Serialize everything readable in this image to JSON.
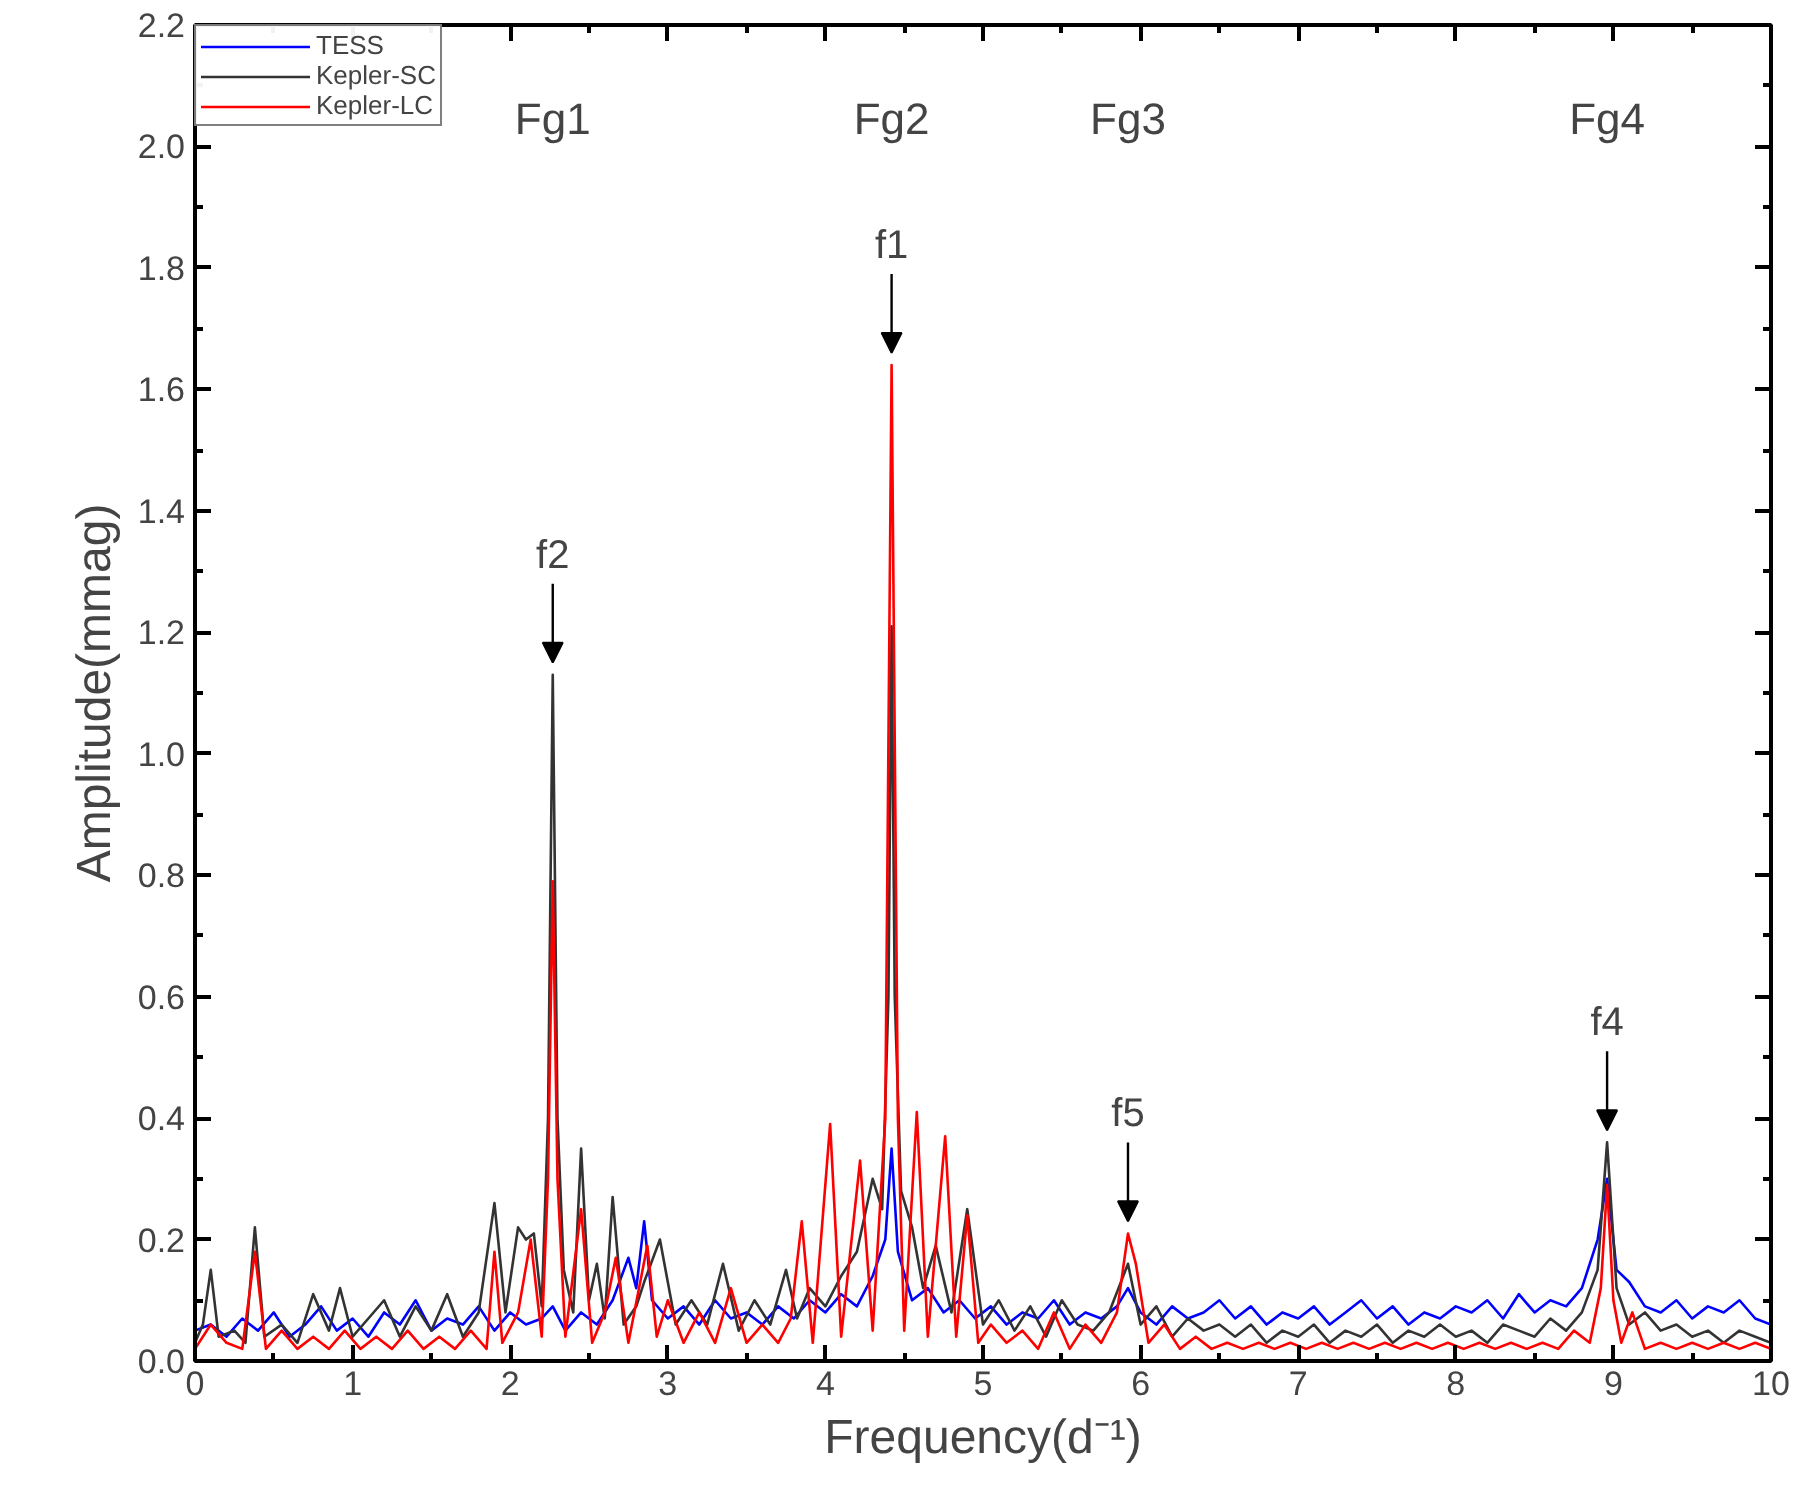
{
  "chart_data": {
    "type": "line",
    "xlabel": "Frequency(d⁻¹)",
    "ylabel": "Amplitude(mmag)",
    "xlim": [
      0,
      10
    ],
    "xticks": [
      0,
      1,
      2,
      3,
      4,
      5,
      6,
      7,
      8,
      9,
      10
    ],
    "ylim": [
      0,
      2.2
    ],
    "yticks": [
      {
        "value": 0,
        "label": "0.0"
      },
      {
        "value": 0.2,
        "label": "0.2"
      },
      {
        "value": 0.4,
        "label": "0.4"
      },
      {
        "value": 0.6,
        "label": "0.6"
      },
      {
        "value": 0.8,
        "label": "0.8"
      },
      {
        "value": 1.0,
        "label": "1.0"
      },
      {
        "value": 1.2,
        "label": "1.2"
      },
      {
        "value": 1.4,
        "label": "1.4"
      },
      {
        "value": 1.6,
        "label": "1.6"
      },
      {
        "value": 1.8,
        "label": "1.8"
      },
      {
        "value": 2.0,
        "label": "2.0"
      },
      {
        "value": 2.2,
        "label": "2.2"
      }
    ],
    "grid": false,
    "legend": "top left",
    "marker": "none",
    "line_style": "solid",
    "annotations": [
      "Fg1",
      "Fg2",
      "Fg3",
      "Fg4",
      {
        "text": "f1",
        "x": 4.42,
        "y": 1.64
      },
      {
        "text": "f2",
        "x": 2.27,
        "y": 1.13
      },
      {
        "text": "f5",
        "x": 5.92,
        "y": 0.21
      },
      {
        "text": "f4",
        "x": 8.96,
        "y": 0.36
      }
    ],
    "series": [
      {
        "name": "TESS",
        "color": "#0000ff",
        "x": [
          0,
          0.1,
          0.2,
          0.3,
          0.4,
          0.5,
          0.6,
          0.7,
          0.8,
          0.9,
          1.0,
          1.1,
          1.2,
          1.3,
          1.4,
          1.5,
          1.6,
          1.7,
          1.8,
          1.9,
          2.0,
          2.1,
          2.2,
          2.27,
          2.35,
          2.45,
          2.55,
          2.65,
          2.75,
          2.8,
          2.85,
          2.9,
          3.0,
          3.1,
          3.2,
          3.3,
          3.4,
          3.5,
          3.6,
          3.7,
          3.8,
          3.9,
          4.0,
          4.1,
          4.2,
          4.3,
          4.38,
          4.42,
          4.46,
          4.55,
          4.65,
          4.75,
          4.85,
          4.95,
          5.05,
          5.15,
          5.25,
          5.35,
          5.45,
          5.55,
          5.65,
          5.75,
          5.85,
          5.92,
          6.0,
          6.1,
          6.2,
          6.3,
          6.4,
          6.5,
          6.6,
          6.7,
          6.8,
          6.9,
          7.0,
          7.1,
          7.2,
          7.3,
          7.4,
          7.5,
          7.6,
          7.7,
          7.8,
          7.9,
          8.0,
          8.1,
          8.2,
          8.3,
          8.4,
          8.5,
          8.6,
          8.7,
          8.8,
          8.9,
          8.96,
          9.02,
          9.1,
          9.2,
          9.3,
          9.4,
          9.5,
          9.6,
          9.7,
          9.8,
          9.9,
          10.0
        ],
        "values": [
          0.05,
          0.06,
          0.04,
          0.07,
          0.05,
          0.08,
          0.04,
          0.06,
          0.09,
          0.05,
          0.07,
          0.04,
          0.08,
          0.06,
          0.1,
          0.05,
          0.07,
          0.06,
          0.09,
          0.05,
          0.08,
          0.06,
          0.07,
          0.09,
          0.05,
          0.08,
          0.06,
          0.1,
          0.17,
          0.12,
          0.23,
          0.1,
          0.07,
          0.09,
          0.06,
          0.1,
          0.07,
          0.08,
          0.06,
          0.09,
          0.07,
          0.1,
          0.08,
          0.11,
          0.09,
          0.14,
          0.2,
          0.35,
          0.18,
          0.1,
          0.12,
          0.08,
          0.1,
          0.07,
          0.09,
          0.06,
          0.08,
          0.07,
          0.1,
          0.06,
          0.08,
          0.07,
          0.09,
          0.12,
          0.08,
          0.06,
          0.09,
          0.07,
          0.08,
          0.1,
          0.07,
          0.09,
          0.06,
          0.08,
          0.07,
          0.09,
          0.06,
          0.08,
          0.1,
          0.07,
          0.09,
          0.06,
          0.08,
          0.07,
          0.09,
          0.08,
          0.1,
          0.07,
          0.11,
          0.08,
          0.1,
          0.09,
          0.12,
          0.2,
          0.3,
          0.15,
          0.13,
          0.09,
          0.08,
          0.1,
          0.07,
          0.09,
          0.08,
          0.1,
          0.07,
          0.06
        ]
      },
      {
        "name": "Kepler-SC",
        "color": "#333333",
        "x": [
          0,
          0.05,
          0.1,
          0.15,
          0.25,
          0.32,
          0.38,
          0.44,
          0.55,
          0.65,
          0.75,
          0.85,
          0.92,
          1.0,
          1.1,
          1.2,
          1.3,
          1.4,
          1.5,
          1.6,
          1.7,
          1.8,
          1.9,
          1.97,
          2.05,
          2.1,
          2.15,
          2.2,
          2.24,
          2.27,
          2.3,
          2.34,
          2.4,
          2.45,
          2.5,
          2.55,
          2.6,
          2.65,
          2.72,
          2.8,
          2.85,
          2.95,
          3.05,
          3.15,
          3.25,
          3.35,
          3.45,
          3.55,
          3.65,
          3.75,
          3.82,
          3.9,
          4.0,
          4.1,
          4.2,
          4.3,
          4.36,
          4.4,
          4.42,
          4.44,
          4.48,
          4.55,
          4.62,
          4.7,
          4.8,
          4.9,
          5.0,
          5.1,
          5.2,
          5.3,
          5.4,
          5.5,
          5.6,
          5.7,
          5.8,
          5.92,
          6.0,
          6.1,
          6.2,
          6.3,
          6.4,
          6.5,
          6.6,
          6.7,
          6.8,
          6.9,
          7.0,
          7.1,
          7.2,
          7.3,
          7.4,
          7.5,
          7.6,
          7.7,
          7.8,
          7.9,
          8.0,
          8.1,
          8.2,
          8.3,
          8.4,
          8.5,
          8.6,
          8.7,
          8.8,
          8.9,
          8.96,
          9.02,
          9.1,
          9.2,
          9.3,
          9.4,
          9.5,
          9.6,
          9.7,
          9.8,
          9.9,
          10.0
        ],
        "values": [
          0.03,
          0.06,
          0.15,
          0.04,
          0.05,
          0.03,
          0.22,
          0.04,
          0.06,
          0.03,
          0.11,
          0.05,
          0.12,
          0.04,
          0.07,
          0.1,
          0.04,
          0.09,
          0.05,
          0.11,
          0.04,
          0.08,
          0.26,
          0.08,
          0.22,
          0.2,
          0.21,
          0.09,
          0.4,
          1.13,
          0.4,
          0.15,
          0.08,
          0.35,
          0.1,
          0.16,
          0.07,
          0.27,
          0.06,
          0.09,
          0.13,
          0.2,
          0.06,
          0.1,
          0.06,
          0.16,
          0.05,
          0.1,
          0.06,
          0.15,
          0.07,
          0.12,
          0.09,
          0.14,
          0.18,
          0.3,
          0.25,
          0.6,
          1.21,
          0.6,
          0.28,
          0.22,
          0.12,
          0.19,
          0.08,
          0.25,
          0.06,
          0.1,
          0.05,
          0.09,
          0.04,
          0.1,
          0.06,
          0.05,
          0.08,
          0.16,
          0.06,
          0.09,
          0.04,
          0.07,
          0.05,
          0.06,
          0.04,
          0.06,
          0.03,
          0.05,
          0.04,
          0.06,
          0.03,
          0.05,
          0.04,
          0.06,
          0.03,
          0.05,
          0.04,
          0.06,
          0.04,
          0.05,
          0.03,
          0.06,
          0.05,
          0.04,
          0.07,
          0.05,
          0.08,
          0.15,
          0.36,
          0.12,
          0.06,
          0.08,
          0.05,
          0.06,
          0.04,
          0.05,
          0.03,
          0.05,
          0.04,
          0.03
        ]
      },
      {
        "name": "Kepler-LC",
        "color": "#ff0000",
        "x": [
          0,
          0.1,
          0.2,
          0.3,
          0.38,
          0.45,
          0.55,
          0.65,
          0.75,
          0.85,
          0.95,
          1.05,
          1.15,
          1.25,
          1.35,
          1.45,
          1.55,
          1.65,
          1.75,
          1.85,
          1.9,
          1.95,
          2.05,
          2.13,
          2.2,
          2.24,
          2.27,
          2.3,
          2.35,
          2.45,
          2.52,
          2.6,
          2.67,
          2.75,
          2.87,
          2.93,
          3.0,
          3.1,
          3.2,
          3.3,
          3.4,
          3.5,
          3.6,
          3.7,
          3.78,
          3.85,
          3.92,
          4.03,
          4.1,
          4.22,
          4.3,
          4.38,
          4.42,
          4.46,
          4.5,
          4.58,
          4.65,
          4.76,
          4.83,
          4.9,
          4.97,
          5.05,
          5.15,
          5.25,
          5.35,
          5.45,
          5.55,
          5.65,
          5.75,
          5.85,
          5.92,
          5.97,
          6.05,
          6.15,
          6.25,
          6.35,
          6.45,
          6.55,
          6.65,
          6.75,
          6.85,
          6.95,
          7.05,
          7.15,
          7.25,
          7.35,
          7.45,
          7.55,
          7.65,
          7.75,
          7.85,
          7.95,
          8.05,
          8.15,
          8.25,
          8.35,
          8.45,
          8.55,
          8.65,
          8.75,
          8.85,
          8.92,
          8.96,
          9.0,
          9.05,
          9.12,
          9.2,
          9.3,
          9.4,
          9.5,
          9.6,
          9.7,
          9.8,
          9.9,
          10.0
        ],
        "values": [
          0.02,
          0.06,
          0.03,
          0.02,
          0.18,
          0.02,
          0.05,
          0.02,
          0.04,
          0.02,
          0.05,
          0.02,
          0.04,
          0.02,
          0.05,
          0.02,
          0.04,
          0.02,
          0.05,
          0.02,
          0.18,
          0.03,
          0.08,
          0.2,
          0.04,
          0.3,
          0.79,
          0.3,
          0.04,
          0.25,
          0.03,
          0.08,
          0.17,
          0.03,
          0.19,
          0.04,
          0.1,
          0.03,
          0.08,
          0.03,
          0.12,
          0.03,
          0.06,
          0.03,
          0.07,
          0.23,
          0.03,
          0.39,
          0.04,
          0.33,
          0.05,
          0.4,
          1.64,
          0.4,
          0.05,
          0.41,
          0.04,
          0.37,
          0.04,
          0.24,
          0.03,
          0.06,
          0.03,
          0.05,
          0.02,
          0.08,
          0.02,
          0.06,
          0.03,
          0.08,
          0.21,
          0.16,
          0.03,
          0.06,
          0.02,
          0.04,
          0.02,
          0.03,
          0.02,
          0.03,
          0.02,
          0.03,
          0.02,
          0.03,
          0.02,
          0.03,
          0.02,
          0.03,
          0.02,
          0.03,
          0.02,
          0.03,
          0.02,
          0.03,
          0.02,
          0.03,
          0.02,
          0.03,
          0.02,
          0.05,
          0.03,
          0.12,
          0.29,
          0.1,
          0.03,
          0.08,
          0.02,
          0.03,
          0.02,
          0.03,
          0.02,
          0.03,
          0.02,
          0.03,
          0.02
        ]
      }
    ]
  }
}
